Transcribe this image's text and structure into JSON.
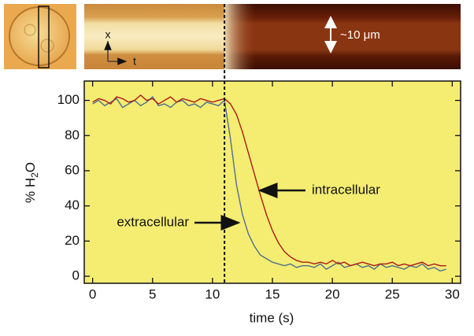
{
  "chart_data": {
    "type": "line",
    "x_label": "time (s)",
    "y_label": [
      "% H",
      "2",
      "O"
    ],
    "x": [
      0,
      0.5,
      1,
      1.5,
      2,
      2.5,
      3,
      3.5,
      4,
      4.5,
      5,
      5.5,
      6,
      6.5,
      7,
      7.5,
      8,
      8.5,
      9,
      9.5,
      10,
      10.5,
      11,
      11.5,
      12,
      12.5,
      13,
      13.5,
      14,
      14.5,
      15,
      15.5,
      16,
      16.5,
      17,
      17.5,
      18,
      18.5,
      19,
      19.5,
      20,
      20.5,
      21,
      21.5,
      22,
      22.5,
      23,
      23.5,
      24,
      24.5,
      25,
      25.5,
      26,
      26.5,
      27,
      27.5,
      28,
      28.5,
      29,
      29.5
    ],
    "series": [
      {
        "name": "intracellular",
        "color": "#b01818",
        "values": [
          99,
          101,
          100,
          98,
          102,
          101,
          99,
          100,
          103,
          100,
          101,
          98,
          100,
          102,
          99,
          101,
          100,
          99,
          101,
          100,
          99,
          100,
          101,
          98,
          92,
          82,
          70,
          58,
          46,
          35,
          26,
          19,
          14,
          11,
          9,
          8,
          8,
          7,
          8,
          7,
          9,
          7,
          8,
          6,
          7,
          8,
          7,
          6,
          7,
          7,
          8,
          6,
          7,
          6,
          7,
          8,
          6,
          7,
          6,
          6
        ]
      },
      {
        "name": "extracellular",
        "color": "#4f6f8f",
        "values": [
          98,
          100,
          97,
          99,
          101,
          96,
          98,
          100,
          97,
          99,
          102,
          97,
          98,
          96,
          99,
          100,
          97,
          98,
          96,
          99,
          98,
          97,
          100,
          78,
          52,
          35,
          24,
          17,
          12,
          10,
          8,
          7,
          6,
          7,
          5,
          6,
          6,
          5,
          7,
          4,
          6,
          8,
          5,
          6,
          7,
          5,
          6,
          4,
          7,
          5,
          6,
          5,
          4,
          6,
          5,
          7,
          4,
          5,
          3,
          4
        ]
      }
    ],
    "vline": 11,
    "xlim": [
      -0.7,
      30.7
    ],
    "xticks": [
      0,
      5,
      10,
      15,
      20,
      25,
      30
    ],
    "ylim": [
      -4,
      111
    ],
    "yticks": [
      0,
      20,
      40,
      60,
      80,
      100
    ],
    "background": "#f4ed72"
  },
  "images": {
    "axis_x": "x",
    "axis_t": "t",
    "scale": "~10 μm"
  }
}
